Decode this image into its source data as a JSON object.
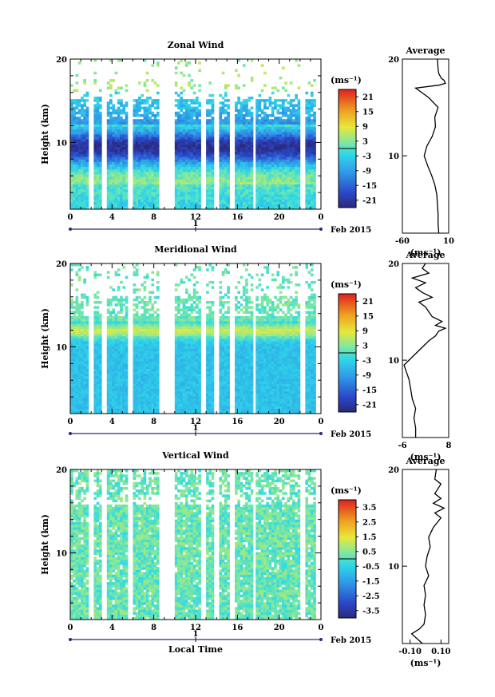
{
  "chart_data": [
    {
      "type": "heatmap",
      "title": "Zonal Wind",
      "ylabel": "Height (km)",
      "ylim": [
        2,
        20
      ],
      "yticks": [
        "20",
        "10"
      ],
      "xticks": [
        "0",
        "4",
        "8",
        "12",
        "16",
        "20",
        "0"
      ],
      "xlim": [
        0,
        24
      ],
      "date_tick": "1",
      "date_label": "Feb 2015",
      "colorbar": {
        "unit": "(ms⁻¹)",
        "ticks": [
          "21",
          "15",
          "9",
          "3",
          "-3",
          "-9",
          "-15",
          "-21"
        ],
        "min": -24,
        "max": 24
      },
      "average": {
        "title": "Average",
        "xticks": [
          "-60",
          "10"
        ],
        "xlim": [
          -60,
          10
        ],
        "yticks": [
          "20",
          "10"
        ],
        "unit": "(ms⁻¹)",
        "profile": [
          [
            2,
            -5
          ],
          [
            3,
            -6
          ],
          [
            4,
            -6
          ],
          [
            5,
            -7
          ],
          [
            6,
            -8
          ],
          [
            7,
            -11
          ],
          [
            8,
            -16
          ],
          [
            9,
            -22
          ],
          [
            10,
            -27
          ],
          [
            11,
            -23
          ],
          [
            12,
            -15
          ],
          [
            13,
            -10
          ],
          [
            14,
            -11
          ],
          [
            15,
            -6
          ],
          [
            16,
            -20
          ],
          [
            16.5,
            -30
          ],
          [
            17,
            -40
          ],
          [
            17.3,
            -5
          ],
          [
            17.5,
            5
          ],
          [
            17.8,
            3
          ],
          [
            18,
            -1
          ],
          [
            18.5,
            -5
          ],
          [
            19,
            -6
          ],
          [
            20,
            -7
          ]
        ]
      }
    },
    {
      "type": "heatmap",
      "title": "Meridional Wind",
      "ylabel": "Height (km)",
      "ylim": [
        2,
        20
      ],
      "yticks": [
        "20",
        "10"
      ],
      "xticks": [
        "0",
        "4",
        "8",
        "12",
        "16",
        "20",
        "0"
      ],
      "xlim": [
        0,
        24
      ],
      "date_tick": "1",
      "date_label": "Feb 2015",
      "colorbar": {
        "unit": "(ms⁻¹)",
        "ticks": [
          "21",
          "15",
          "9",
          "3",
          "-3",
          "-9",
          "-15",
          "-21"
        ],
        "min": -24,
        "max": 24
      },
      "average": {
        "title": "Average",
        "xticks": [
          "-6",
          "8"
        ],
        "xlim": [
          -6,
          8
        ],
        "yticks": [
          "20",
          "10"
        ],
        "unit": "(ms⁻¹)",
        "profile": [
          [
            2,
            -2
          ],
          [
            3,
            -2
          ],
          [
            4,
            -2.5
          ],
          [
            5,
            -2
          ],
          [
            6,
            -3
          ],
          [
            7,
            -3.5
          ],
          [
            8,
            -4
          ],
          [
            9,
            -5
          ],
          [
            9.5,
            -5.5
          ],
          [
            10,
            -4
          ],
          [
            11,
            -1
          ],
          [
            12,
            2
          ],
          [
            12.5,
            4
          ],
          [
            13,
            5
          ],
          [
            13.3,
            7
          ],
          [
            13.6,
            4
          ],
          [
            14,
            6
          ],
          [
            14.5,
            3
          ],
          [
            15,
            2
          ],
          [
            15.5,
            1
          ],
          [
            16,
            -1
          ],
          [
            16.5,
            3
          ],
          [
            17,
            0
          ],
          [
            17.5,
            -2
          ],
          [
            18,
            1
          ],
          [
            18.5,
            -3
          ],
          [
            19,
            2
          ],
          [
            19.5,
            0
          ],
          [
            20,
            1
          ]
        ]
      }
    },
    {
      "type": "heatmap",
      "title": "Vertical Wind",
      "ylabel": "Height (km)",
      "xlabel": "Local Time",
      "ylim": [
        2,
        20
      ],
      "yticks": [
        "20",
        "10"
      ],
      "xticks": [
        "0",
        "4",
        "8",
        "12",
        "16",
        "20",
        "0"
      ],
      "xlim": [
        0,
        24
      ],
      "date_tick": "1",
      "date_label": "Feb 2015",
      "colorbar": {
        "unit": "(ms⁻¹)",
        "ticks": [
          "3.5",
          "2.5",
          "1.5",
          "0.5",
          "-0.5",
          "-1.5",
          "-2.5",
          "-3.5"
        ],
        "min": -4,
        "max": 4
      },
      "average": {
        "title": "Average",
        "xticks": [
          "-0.10",
          "0.10"
        ],
        "xlim": [
          -0.15,
          0.15
        ],
        "yticks": [
          "20",
          "10"
        ],
        "unit": "(ms⁻¹)",
        "profile": [
          [
            2,
            -0.02
          ],
          [
            3,
            -0.09
          ],
          [
            3.5,
            -0.04
          ],
          [
            4,
            -0.01
          ],
          [
            5,
            0.0
          ],
          [
            6,
            -0.01
          ],
          [
            7,
            0.0
          ],
          [
            8,
            -0.01
          ],
          [
            9,
            0.02
          ],
          [
            10,
            0.0
          ],
          [
            11,
            0.01
          ],
          [
            12,
            0.03
          ],
          [
            13,
            0.02
          ],
          [
            14,
            0.05
          ],
          [
            15,
            0.1
          ],
          [
            15.5,
            0.06
          ],
          [
            16,
            0.12
          ],
          [
            16.5,
            0.05
          ],
          [
            17,
            0.1
          ],
          [
            17.5,
            0.06
          ],
          [
            18,
            0.08
          ],
          [
            18.5,
            0.1
          ],
          [
            19,
            0.06
          ],
          [
            20,
            0.07
          ]
        ]
      }
    }
  ]
}
